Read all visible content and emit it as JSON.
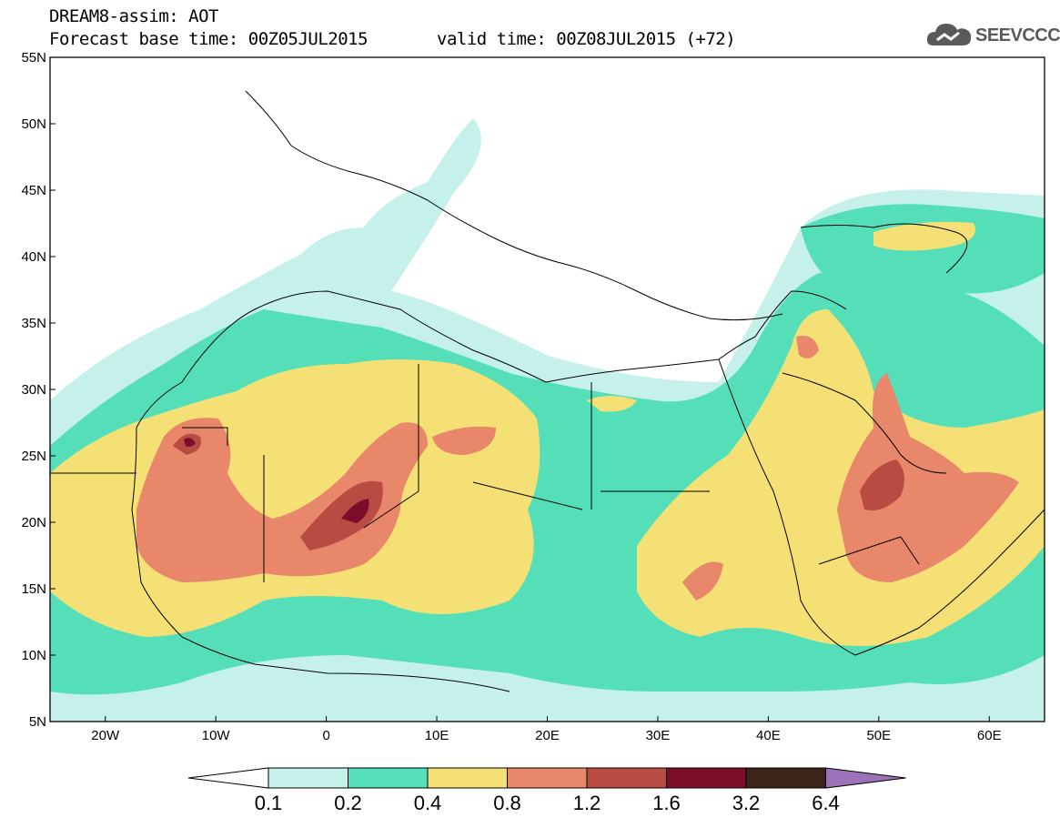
{
  "header": {
    "title_line1": "DREAM8-assim: AOT",
    "title_line2": "Forecast base time: 00Z05JUL2015",
    "valid_time": "valid time: 00Z08JUL2015 (+72)"
  },
  "logo": {
    "text": "SEEVCCC",
    "icon": "cloud-icon"
  },
  "map": {
    "lat_labels": [
      "55N",
      "50N",
      "45N",
      "40N",
      "35N",
      "30N",
      "25N",
      "20N",
      "15N",
      "10N",
      "5N"
    ],
    "lon_labels": [
      "20W",
      "10W",
      "0",
      "10E",
      "20E",
      "30E",
      "40E",
      "50E",
      "60E"
    ],
    "lat_range": [
      5,
      55
    ],
    "lon_range": [
      -25,
      65
    ],
    "colors": {
      "c01": "#c6f0ea",
      "c02": "#55dfb8",
      "c04": "#f4e074",
      "c08": "#e8876a",
      "c12": "#b84c43",
      "c16": "#7a0e2a",
      "c32": "#3d2418",
      "c64": "#9c73b8"
    }
  },
  "colorbar": {
    "labels": [
      "0.1",
      "0.2",
      "0.4",
      "0.8",
      "1.2",
      "1.6",
      "3.2",
      "6.4"
    ],
    "colors": [
      "#c6f0ea",
      "#55dfb8",
      "#f4e074",
      "#e8876a",
      "#b84c43",
      "#7a0e2a",
      "#3d2418"
    ],
    "low_triangle": "#ffffff",
    "high_triangle": "#9c73b8"
  }
}
